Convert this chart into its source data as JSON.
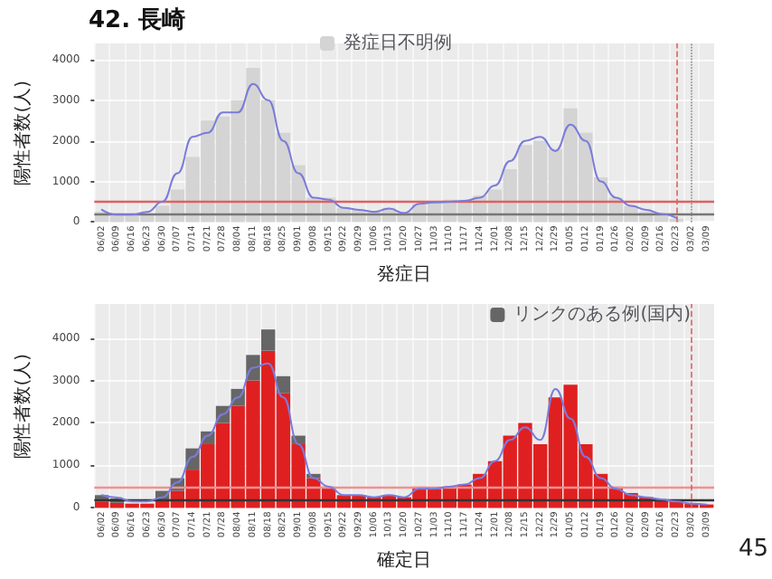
{
  "chart_data": [
    {
      "type": "bar",
      "title": "42. 長崎",
      "xlabel": "発症日",
      "ylabel": "陽性者数(人)",
      "categories": [
        "06/02",
        "06/09",
        "06/16",
        "06/23",
        "06/30",
        "07/07",
        "07/14",
        "07/21",
        "07/28",
        "08/04",
        "08/11",
        "08/18",
        "08/25",
        "09/01",
        "09/08",
        "09/15",
        "09/22",
        "09/29",
        "10/06",
        "10/13",
        "10/20",
        "10/27",
        "11/03",
        "11/10",
        "11/17",
        "11/24",
        "12/01",
        "12/08",
        "12/15",
        "12/22",
        "12/29",
        "01/05",
        "01/12",
        "01/19",
        "01/26",
        "02/02",
        "02/09",
        "02/16",
        "02/23",
        "03/02",
        "03/09"
      ],
      "series": [
        {
          "name": "発症日不明例",
          "color": "#d4d4d4",
          "values": [
            250,
            150,
            150,
            200,
            400,
            800,
            1600,
            2500,
            2600,
            3000,
            3800,
            3000,
            2200,
            1400,
            600,
            600,
            350,
            300,
            250,
            350,
            250,
            450,
            500,
            550,
            550,
            650,
            800,
            1300,
            1900,
            2000,
            1800,
            2800,
            2200,
            1100,
            600,
            400,
            250,
            150,
            80,
            null,
            null
          ]
        },
        {
          "type": "line",
          "color": "#7b7bdb",
          "values": [
            300,
            180,
            180,
            250,
            500,
            1200,
            2100,
            2200,
            2700,
            2700,
            3400,
            3000,
            2000,
            1200,
            600,
            550,
            350,
            300,
            250,
            330,
            220,
            450,
            480,
            500,
            520,
            600,
            900,
            1500,
            2000,
            2100,
            1750,
            2400,
            2000,
            1000,
            600,
            400,
            300,
            200,
            100,
            null,
            null
          ]
        }
      ],
      "ylim": [
        0,
        4400
      ],
      "yticks": [
        0,
        1000,
        2000,
        3000,
        4000
      ],
      "grid": true,
      "legend": "top",
      "marker": "none",
      "ref_lines": [
        {
          "axis": "y",
          "value": 500,
          "color": "#e06060"
        },
        {
          "axis": "y",
          "value": 200,
          "color": "#777777"
        },
        {
          "axis": "x",
          "value": "02/23",
          "color": "#e06060",
          "line_style": "dashed"
        },
        {
          "axis": "x",
          "value": "03/02",
          "color": "#888888",
          "line_style": "dotted"
        }
      ]
    },
    {
      "type": "bar",
      "xlabel": "確定日",
      "ylabel": "陽性者数(人)",
      "stacked": true,
      "categories": [
        "06/02",
        "06/09",
        "06/16",
        "06/23",
        "06/30",
        "07/07",
        "07/14",
        "07/21",
        "07/28",
        "08/04",
        "08/11",
        "08/18",
        "08/25",
        "09/01",
        "09/08",
        "09/15",
        "09/22",
        "09/29",
        "10/06",
        "10/13",
        "10/20",
        "10/27",
        "11/03",
        "11/10",
        "11/17",
        "11/24",
        "12/01",
        "12/08",
        "12/15",
        "12/22",
        "12/29",
        "01/05",
        "01/12",
        "01/19",
        "01/26",
        "02/02",
        "02/09",
        "02/16",
        "02/23",
        "03/02",
        "03/09"
      ],
      "series": [
        {
          "color": "#e02020",
          "values": [
            150,
            120,
            100,
            100,
            200,
            400,
            900,
            1500,
            2000,
            2400,
            3000,
            3700,
            2700,
            1500,
            700,
            500,
            300,
            300,
            250,
            300,
            250,
            500,
            450,
            500,
            550,
            800,
            1100,
            1700,
            2000,
            1500,
            2600,
            2900,
            1500,
            800,
            500,
            350,
            250,
            200,
            150,
            100,
            80
          ]
        },
        {
          "name": "リンクのある例(国内)",
          "color": "#666666",
          "values": [
            150,
            100,
            null,
            null,
            200,
            300,
            500,
            300,
            400,
            400,
            600,
            500,
            400,
            200,
            100,
            null,
            null,
            0,
            0,
            0,
            0,
            0,
            0,
            0,
            0,
            0,
            0,
            0,
            0,
            0,
            0,
            0,
            0,
            0,
            0,
            0,
            0,
            0,
            0,
            0,
            0
          ]
        },
        {
          "type": "line",
          "color": "#7b7bdb",
          "values": [
            300,
            240,
            150,
            150,
            250,
            600,
            1200,
            1700,
            2200,
            2600,
            3300,
            3400,
            2600,
            1500,
            700,
            500,
            300,
            300,
            250,
            300,
            250,
            450,
            450,
            500,
            550,
            700,
            1100,
            1600,
            1900,
            1600,
            2800,
            2100,
            1200,
            700,
            450,
            300,
            250,
            200,
            150,
            100,
            80
          ]
        }
      ],
      "ylim": [
        0,
        4800
      ],
      "yticks": [
        0,
        1000,
        2000,
        3000,
        4000
      ],
      "grid": true,
      "legend": "top right",
      "marker": "none",
      "annotations": [
        "45"
      ],
      "ref_lines": [
        {
          "axis": "y",
          "value": 500,
          "color": "#f09090"
        },
        {
          "axis": "y",
          "value": 200,
          "color": "#333333"
        },
        {
          "axis": "x",
          "value": "03/02",
          "color": "#e06060",
          "line_style": "dashed"
        }
      ]
    }
  ]
}
